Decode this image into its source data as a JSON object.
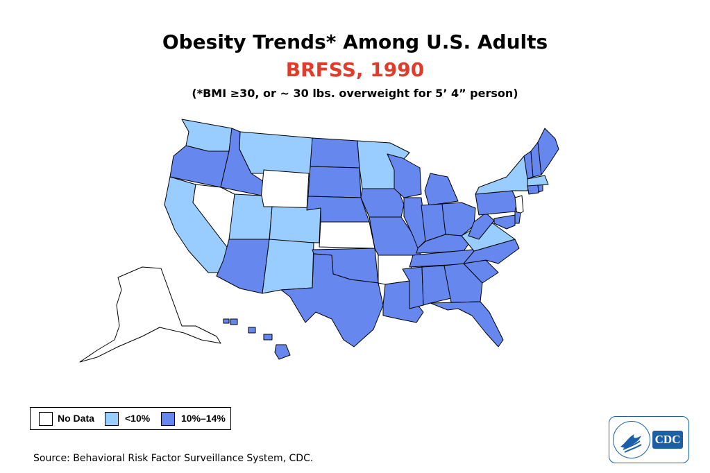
{
  "title": "Obesity Trends* Among U.S. Adults",
  "subtitle": "BRFSS, 1990",
  "note": "(*BMI ≥30, or ~ 30 lbs. overweight for 5’ 4” person)",
  "legend": [
    {
      "label": "No Data",
      "color": "#ffffff"
    },
    {
      "label": "<10%",
      "color": "#99ccff"
    },
    {
      "label": "10%–14%",
      "color": "#6688ee"
    }
  ],
  "source": "Source: Behavioral Risk Factor Surveillance System, CDC.",
  "logo": {
    "text": "CDC",
    "icon": "cdc-eagle-icon"
  },
  "colors": {
    "no_data": "#ffffff",
    "lt10": "#99ccff",
    "b10_14": "#6688ee",
    "subtitle": "#e03c2c",
    "outline": "#000000"
  },
  "states": [
    {
      "id": "WA",
      "category": "lt10"
    },
    {
      "id": "OR",
      "category": "b10_14"
    },
    {
      "id": "CA",
      "category": "lt10"
    },
    {
      "id": "NV",
      "category": "no_data"
    },
    {
      "id": "ID",
      "category": "b10_14"
    },
    {
      "id": "MT",
      "category": "lt10"
    },
    {
      "id": "WY",
      "category": "no_data"
    },
    {
      "id": "UT",
      "category": "lt10"
    },
    {
      "id": "CO",
      "category": "lt10"
    },
    {
      "id": "AZ",
      "category": "b10_14"
    },
    {
      "id": "NM",
      "category": "lt10"
    },
    {
      "id": "ND",
      "category": "b10_14"
    },
    {
      "id": "SD",
      "category": "b10_14"
    },
    {
      "id": "NE",
      "category": "b10_14"
    },
    {
      "id": "KS",
      "category": "no_data"
    },
    {
      "id": "OK",
      "category": "b10_14"
    },
    {
      "id": "TX",
      "category": "b10_14"
    },
    {
      "id": "MN",
      "category": "lt10"
    },
    {
      "id": "IA",
      "category": "b10_14"
    },
    {
      "id": "MO",
      "category": "b10_14"
    },
    {
      "id": "AR",
      "category": "no_data"
    },
    {
      "id": "LA",
      "category": "b10_14"
    },
    {
      "id": "WI",
      "category": "b10_14"
    },
    {
      "id": "IL",
      "category": "b10_14"
    },
    {
      "id": "MI",
      "category": "b10_14"
    },
    {
      "id": "IN",
      "category": "b10_14"
    },
    {
      "id": "OH",
      "category": "b10_14"
    },
    {
      "id": "KY",
      "category": "b10_14"
    },
    {
      "id": "TN",
      "category": "b10_14"
    },
    {
      "id": "MS",
      "category": "b10_14"
    },
    {
      "id": "AL",
      "category": "b10_14"
    },
    {
      "id": "GA",
      "category": "b10_14"
    },
    {
      "id": "FL",
      "category": "b10_14"
    },
    {
      "id": "SC",
      "category": "b10_14"
    },
    {
      "id": "NC",
      "category": "b10_14"
    },
    {
      "id": "VA",
      "category": "lt10"
    },
    {
      "id": "WV",
      "category": "b10_14"
    },
    {
      "id": "PA",
      "category": "b10_14"
    },
    {
      "id": "NY",
      "category": "lt10"
    },
    {
      "id": "NJ",
      "category": "no_data"
    },
    {
      "id": "DE",
      "category": "b10_14"
    },
    {
      "id": "MD",
      "category": "b10_14"
    },
    {
      "id": "CT",
      "category": "b10_14"
    },
    {
      "id": "RI",
      "category": "b10_14"
    },
    {
      "id": "MA",
      "category": "lt10"
    },
    {
      "id": "VT",
      "category": "b10_14"
    },
    {
      "id": "NH",
      "category": "b10_14"
    },
    {
      "id": "ME",
      "category": "b10_14"
    },
    {
      "id": "AK",
      "category": "no_data"
    },
    {
      "id": "HI",
      "category": "b10_14"
    }
  ]
}
